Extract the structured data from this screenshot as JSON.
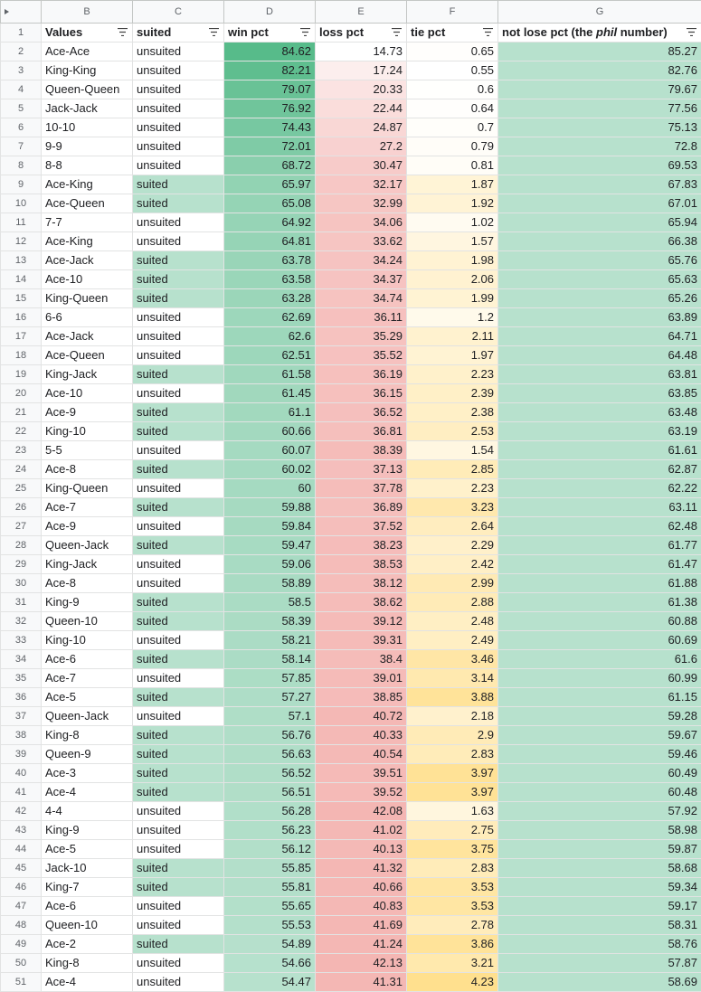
{
  "columns": [
    "",
    "B",
    "C",
    "D",
    "E",
    "F",
    "G"
  ],
  "header": {
    "row_number": "1",
    "b": "Values",
    "c": "suited",
    "d": "win pct",
    "e": "loss pct",
    "f": "tie pct",
    "g_prefix": "not lose pct (the ",
    "g_emph": "phil",
    "g_suffix": " number)"
  },
  "colors": {
    "suited_fill": "#b7e1cd",
    "not_lose_fill": "#b7e1cd",
    "win_high": "#57bb8a",
    "loss_high": "#f4b6b3",
    "tie_high": "#ffe08e"
  },
  "rows": [
    {
      "n": "2",
      "hand": "Ace-Ace",
      "suited": "unsuited",
      "win": "84.62",
      "loss": "14.73",
      "tie": "0.65",
      "notlose": "85.27"
    },
    {
      "n": "3",
      "hand": "King-King",
      "suited": "unsuited",
      "win": "82.21",
      "loss": "17.24",
      "tie": "0.55",
      "notlose": "82.76"
    },
    {
      "n": "4",
      "hand": "Queen-Queen",
      "suited": "unsuited",
      "win": "79.07",
      "loss": "20.33",
      "tie": "0.6",
      "notlose": "79.67"
    },
    {
      "n": "5",
      "hand": "Jack-Jack",
      "suited": "unsuited",
      "win": "76.92",
      "loss": "22.44",
      "tie": "0.64",
      "notlose": "77.56"
    },
    {
      "n": "6",
      "hand": "10-10",
      "suited": "unsuited",
      "win": "74.43",
      "loss": "24.87",
      "tie": "0.7",
      "notlose": "75.13"
    },
    {
      "n": "7",
      "hand": "9-9",
      "suited": "unsuited",
      "win": "72.01",
      "loss": "27.2",
      "tie": "0.79",
      "notlose": "72.8"
    },
    {
      "n": "8",
      "hand": "8-8",
      "suited": "unsuited",
      "win": "68.72",
      "loss": "30.47",
      "tie": "0.81",
      "notlose": "69.53"
    },
    {
      "n": "9",
      "hand": "Ace-King",
      "suited": "suited",
      "win": "65.97",
      "loss": "32.17",
      "tie": "1.87",
      "notlose": "67.83"
    },
    {
      "n": "10",
      "hand": "Ace-Queen",
      "suited": "suited",
      "win": "65.08",
      "loss": "32.99",
      "tie": "1.92",
      "notlose": "67.01"
    },
    {
      "n": "11",
      "hand": "7-7",
      "suited": "unsuited",
      "win": "64.92",
      "loss": "34.06",
      "tie": "1.02",
      "notlose": "65.94"
    },
    {
      "n": "12",
      "hand": "Ace-King",
      "suited": "unsuited",
      "win": "64.81",
      "loss": "33.62",
      "tie": "1.57",
      "notlose": "66.38"
    },
    {
      "n": "13",
      "hand": "Ace-Jack",
      "suited": "suited",
      "win": "63.78",
      "loss": "34.24",
      "tie": "1.98",
      "notlose": "65.76"
    },
    {
      "n": "14",
      "hand": "Ace-10",
      "suited": "suited",
      "win": "63.58",
      "loss": "34.37",
      "tie": "2.06",
      "notlose": "65.63"
    },
    {
      "n": "15",
      "hand": "King-Queen",
      "suited": "suited",
      "win": "63.28",
      "loss": "34.74",
      "tie": "1.99",
      "notlose": "65.26"
    },
    {
      "n": "16",
      "hand": "6-6",
      "suited": "unsuited",
      "win": "62.69",
      "loss": "36.11",
      "tie": "1.2",
      "notlose": "63.89"
    },
    {
      "n": "17",
      "hand": "Ace-Jack",
      "suited": "unsuited",
      "win": "62.6",
      "loss": "35.29",
      "tie": "2.11",
      "notlose": "64.71"
    },
    {
      "n": "18",
      "hand": "Ace-Queen",
      "suited": "unsuited",
      "win": "62.51",
      "loss": "35.52",
      "tie": "1.97",
      "notlose": "64.48"
    },
    {
      "n": "19",
      "hand": "King-Jack",
      "suited": "suited",
      "win": "61.58",
      "loss": "36.19",
      "tie": "2.23",
      "notlose": "63.81"
    },
    {
      "n": "20",
      "hand": "Ace-10",
      "suited": "unsuited",
      "win": "61.45",
      "loss": "36.15",
      "tie": "2.39",
      "notlose": "63.85"
    },
    {
      "n": "21",
      "hand": "Ace-9",
      "suited": "suited",
      "win": "61.1",
      "loss": "36.52",
      "tie": "2.38",
      "notlose": "63.48"
    },
    {
      "n": "22",
      "hand": "King-10",
      "suited": "suited",
      "win": "60.66",
      "loss": "36.81",
      "tie": "2.53",
      "notlose": "63.19"
    },
    {
      "n": "23",
      "hand": "5-5",
      "suited": "unsuited",
      "win": "60.07",
      "loss": "38.39",
      "tie": "1.54",
      "notlose": "61.61"
    },
    {
      "n": "24",
      "hand": "Ace-8",
      "suited": "suited",
      "win": "60.02",
      "loss": "37.13",
      "tie": "2.85",
      "notlose": "62.87"
    },
    {
      "n": "25",
      "hand": "King-Queen",
      "suited": "unsuited",
      "win": "60",
      "loss": "37.78",
      "tie": "2.23",
      "notlose": "62.22"
    },
    {
      "n": "26",
      "hand": "Ace-7",
      "suited": "suited",
      "win": "59.88",
      "loss": "36.89",
      "tie": "3.23",
      "notlose": "63.11"
    },
    {
      "n": "27",
      "hand": "Ace-9",
      "suited": "unsuited",
      "win": "59.84",
      "loss": "37.52",
      "tie": "2.64",
      "notlose": "62.48"
    },
    {
      "n": "28",
      "hand": "Queen-Jack",
      "suited": "suited",
      "win": "59.47",
      "loss": "38.23",
      "tie": "2.29",
      "notlose": "61.77"
    },
    {
      "n": "29",
      "hand": "King-Jack",
      "suited": "unsuited",
      "win": "59.06",
      "loss": "38.53",
      "tie": "2.42",
      "notlose": "61.47"
    },
    {
      "n": "30",
      "hand": "Ace-8",
      "suited": "unsuited",
      "win": "58.89",
      "loss": "38.12",
      "tie": "2.99",
      "notlose": "61.88"
    },
    {
      "n": "31",
      "hand": "King-9",
      "suited": "suited",
      "win": "58.5",
      "loss": "38.62",
      "tie": "2.88",
      "notlose": "61.38"
    },
    {
      "n": "32",
      "hand": "Queen-10",
      "suited": "suited",
      "win": "58.39",
      "loss": "39.12",
      "tie": "2.48",
      "notlose": "60.88"
    },
    {
      "n": "33",
      "hand": "King-10",
      "suited": "unsuited",
      "win": "58.21",
      "loss": "39.31",
      "tie": "2.49",
      "notlose": "60.69"
    },
    {
      "n": "34",
      "hand": "Ace-6",
      "suited": "suited",
      "win": "58.14",
      "loss": "38.4",
      "tie": "3.46",
      "notlose": "61.6"
    },
    {
      "n": "35",
      "hand": "Ace-7",
      "suited": "unsuited",
      "win": "57.85",
      "loss": "39.01",
      "tie": "3.14",
      "notlose": "60.99"
    },
    {
      "n": "36",
      "hand": "Ace-5",
      "suited": "suited",
      "win": "57.27",
      "loss": "38.85",
      "tie": "3.88",
      "notlose": "61.15"
    },
    {
      "n": "37",
      "hand": "Queen-Jack",
      "suited": "unsuited",
      "win": "57.1",
      "loss": "40.72",
      "tie": "2.18",
      "notlose": "59.28"
    },
    {
      "n": "38",
      "hand": "King-8",
      "suited": "suited",
      "win": "56.76",
      "loss": "40.33",
      "tie": "2.9",
      "notlose": "59.67"
    },
    {
      "n": "39",
      "hand": "Queen-9",
      "suited": "suited",
      "win": "56.63",
      "loss": "40.54",
      "tie": "2.83",
      "notlose": "59.46"
    },
    {
      "n": "40",
      "hand": "Ace-3",
      "suited": "suited",
      "win": "56.52",
      "loss": "39.51",
      "tie": "3.97",
      "notlose": "60.49"
    },
    {
      "n": "41",
      "hand": "Ace-4",
      "suited": "suited",
      "win": "56.51",
      "loss": "39.52",
      "tie": "3.97",
      "notlose": "60.48"
    },
    {
      "n": "42",
      "hand": "4-4",
      "suited": "unsuited",
      "win": "56.28",
      "loss": "42.08",
      "tie": "1.63",
      "notlose": "57.92"
    },
    {
      "n": "43",
      "hand": "King-9",
      "suited": "unsuited",
      "win": "56.23",
      "loss": "41.02",
      "tie": "2.75",
      "notlose": "58.98"
    },
    {
      "n": "44",
      "hand": "Ace-5",
      "suited": "unsuited",
      "win": "56.12",
      "loss": "40.13",
      "tie": "3.75",
      "notlose": "59.87"
    },
    {
      "n": "45",
      "hand": "Jack-10",
      "suited": "suited",
      "win": "55.85",
      "loss": "41.32",
      "tie": "2.83",
      "notlose": "58.68"
    },
    {
      "n": "46",
      "hand": "King-7",
      "suited": "suited",
      "win": "55.81",
      "loss": "40.66",
      "tie": "3.53",
      "notlose": "59.34"
    },
    {
      "n": "47",
      "hand": "Ace-6",
      "suited": "unsuited",
      "win": "55.65",
      "loss": "40.83",
      "tie": "3.53",
      "notlose": "59.17"
    },
    {
      "n": "48",
      "hand": "Queen-10",
      "suited": "unsuited",
      "win": "55.53",
      "loss": "41.69",
      "tie": "2.78",
      "notlose": "58.31"
    },
    {
      "n": "49",
      "hand": "Ace-2",
      "suited": "suited",
      "win": "54.89",
      "loss": "41.24",
      "tie": "3.86",
      "notlose": "58.76"
    },
    {
      "n": "50",
      "hand": "King-8",
      "suited": "unsuited",
      "win": "54.66",
      "loss": "42.13",
      "tie": "3.21",
      "notlose": "57.87"
    },
    {
      "n": "51",
      "hand": "Ace-4",
      "suited": "unsuited",
      "win": "54.47",
      "loss": "41.31",
      "tie": "4.23",
      "notlose": "58.69"
    }
  ]
}
